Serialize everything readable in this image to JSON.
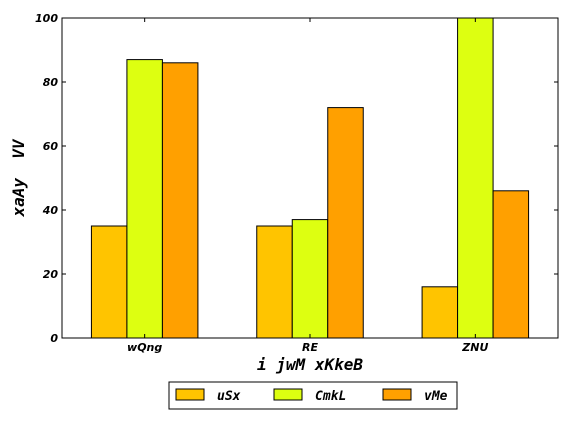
{
  "chart_data": {
    "type": "bar",
    "title": "",
    "xlabel": "i jwM xKkeB",
    "ylabel": "xaAy  VV",
    "categories": [
      "wQng",
      "RE",
      "ZNU"
    ],
    "ylim": [
      0,
      100
    ],
    "yticks": [
      0,
      20,
      40,
      60,
      80,
      100
    ],
    "grid": false,
    "legend_position": "bottom-center",
    "series": [
      {
        "name": "uSx",
        "color": "#ffc400",
        "values": [
          35,
          35,
          16
        ]
      },
      {
        "name": "CmkL",
        "color": "#ddff11",
        "values": [
          87,
          37,
          100
        ]
      },
      {
        "name": "vMe",
        "color": "#ffa000",
        "values": [
          86,
          72,
          46
        ]
      }
    ]
  }
}
